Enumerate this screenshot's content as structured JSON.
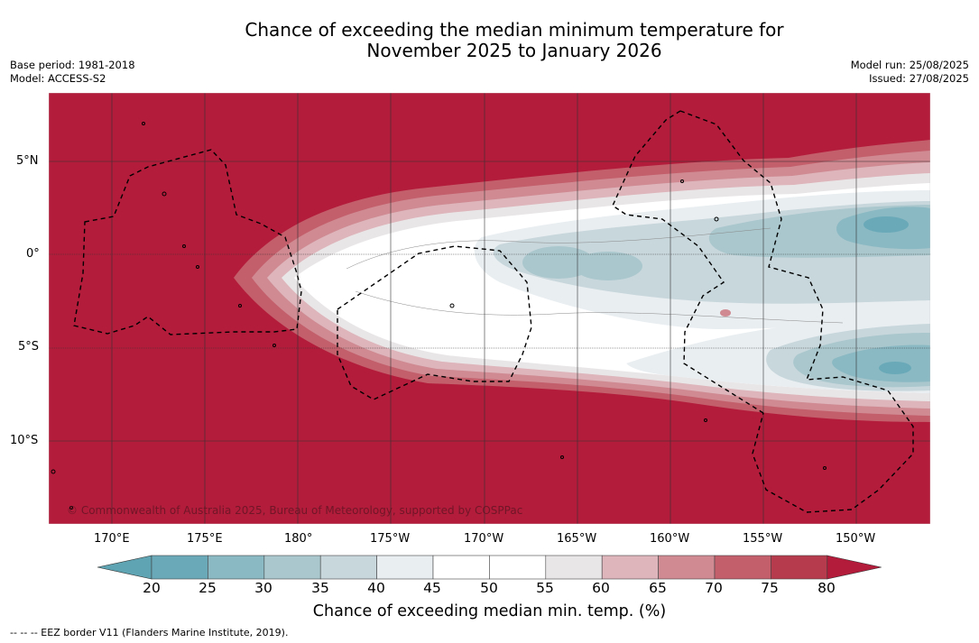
{
  "title": "Chance of exceeding the median minimum temperature for\nNovember 2025 to January 2026",
  "meta_left": {
    "base_period": "Base period: 1981-2018",
    "model": "Model: ACCESS-S2"
  },
  "meta_right": {
    "model_run": "Model run: 25/08/2025",
    "issued": "Issued: 27/08/2025"
  },
  "copyright": "© Commonwealth of Australia 2025, Bureau of Meteorology, supported by COSPPac",
  "lon_ticks": [
    "170°E",
    "175°E",
    "180°",
    "175°W",
    "170°W",
    "165°W",
    "160°W",
    "155°W",
    "150°W"
  ],
  "lat_ticks": [
    "5°N",
    "0°",
    "5°S",
    "10°S"
  ],
  "colorbar": {
    "label": "Chance of exceeding median min. temp. (%)",
    "ticks": [
      "20",
      "25",
      "30",
      "35",
      "40",
      "45",
      "50",
      "55",
      "60",
      "65",
      "70",
      "75",
      "80"
    ],
    "colors": [
      "#5fa4b2",
      "#6aaab8",
      "#8ab8c3",
      "#a9c7cd",
      "#c8d7dc",
      "#e9eef1",
      "#ffffff",
      "#ffffff",
      "#e9e6e7",
      "#ddb5bb",
      "#cf8a92",
      "#c35e6b",
      "#b63c4d",
      "#b31c3b"
    ]
  },
  "footer": "--  --  -- EEZ border V11 (Flanders Marine Institute, 2019).",
  "map": {
    "background_color": "#b31c3b",
    "bands": [
      "#c35e6b",
      "#cf8a92",
      "#ddb5bb",
      "#e9e6e7",
      "#ffffff"
    ],
    "blue_colors": [
      "#c8d7dc",
      "#a9c7cd",
      "#8ab8c3",
      "#6aaab8"
    ]
  }
}
